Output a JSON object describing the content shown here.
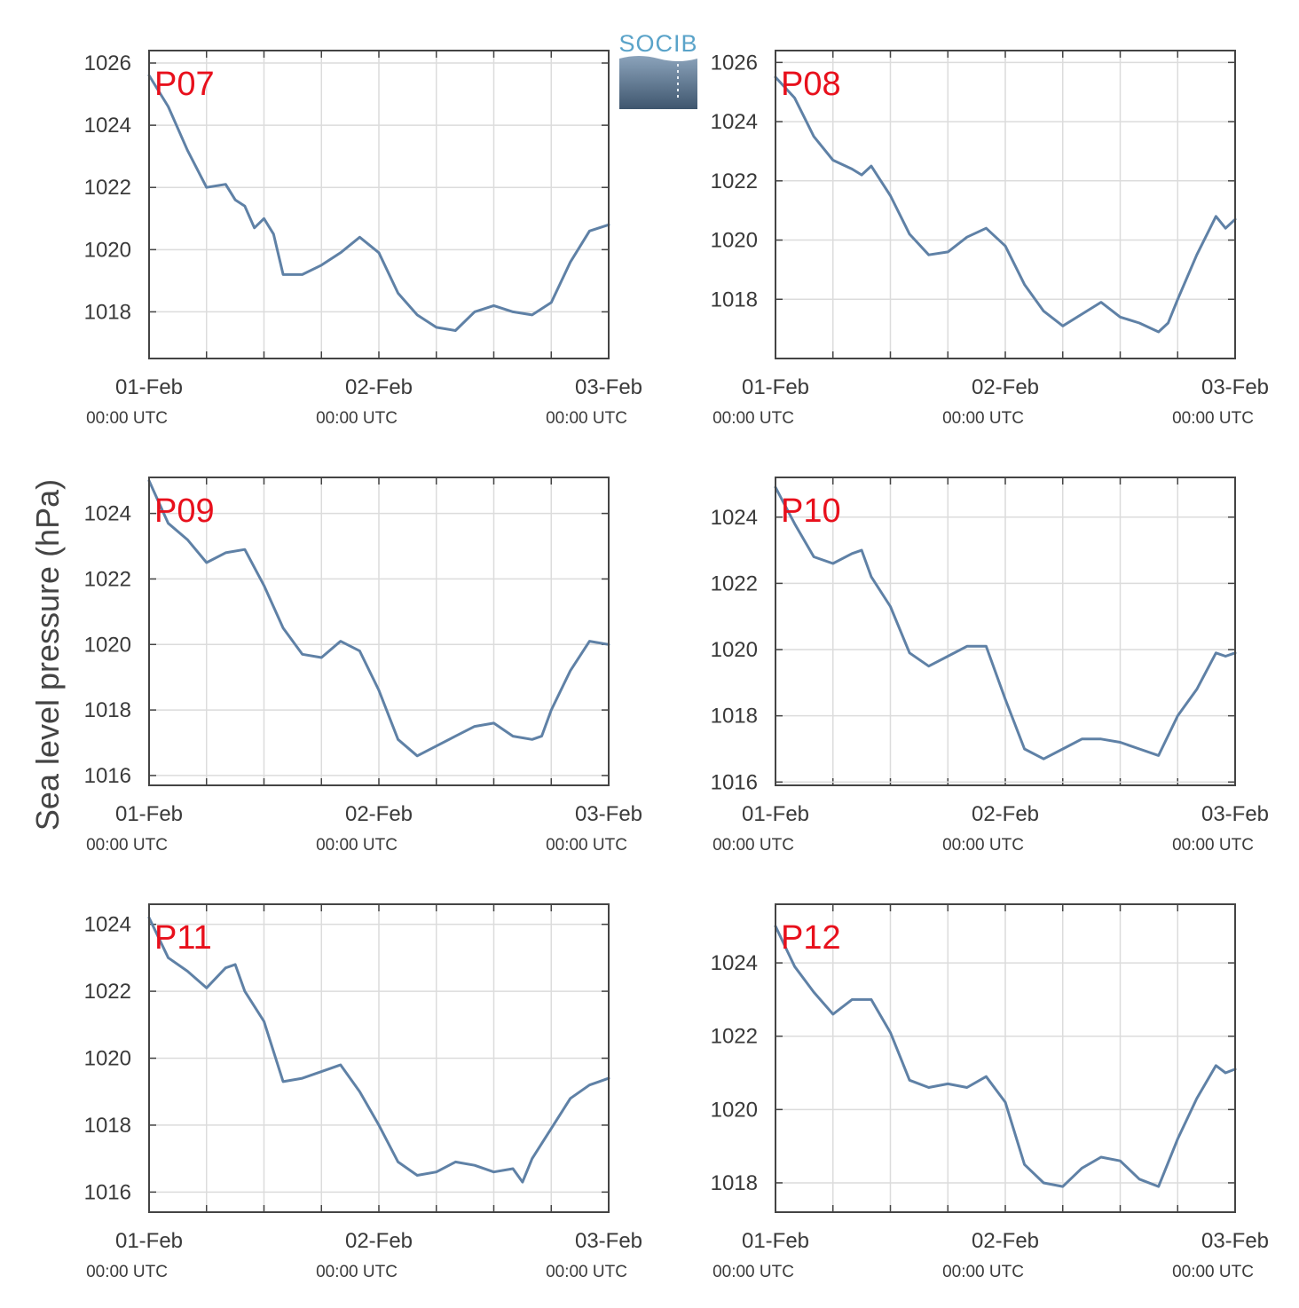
{
  "figure": {
    "ylabel": "Sea level pressure (hPa)",
    "logo_text": "SOCIB",
    "line_color": "#5f81a6",
    "label_color": "#e8101c",
    "grid_color": "#dcdcdc"
  },
  "chart_data": [
    {
      "type": "line",
      "title": "P07",
      "ylim": [
        1016.5,
        1026.4
      ],
      "yticks": [
        "1018",
        "1020",
        "1022",
        "1024",
        "1026"
      ],
      "xticks": [
        {
          "date": "01-Feb",
          "time": "00:00 UTC"
        },
        {
          "date": "02-Feb",
          "time": "00:00 UTC"
        },
        {
          "date": "03-Feb",
          "time": "00:00 UTC"
        }
      ],
      "x_unit": "hours since 01-Feb 00:00 UTC",
      "x": [
        0,
        2,
        4,
        6,
        8,
        9,
        10,
        11,
        12,
        13,
        14,
        16,
        18,
        20,
        22,
        24,
        26,
        28,
        30,
        32,
        34,
        36,
        38,
        40,
        42,
        44,
        46,
        48
      ],
      "y": [
        1025.6,
        1024.6,
        1023.2,
        1022.0,
        1022.1,
        1021.6,
        1021.4,
        1020.7,
        1021.0,
        1020.5,
        1019.2,
        1019.2,
        1019.5,
        1019.9,
        1020.4,
        1019.9,
        1018.6,
        1017.9,
        1017.5,
        1017.4,
        1018.0,
        1018.2,
        1018.0,
        1017.9,
        1018.3,
        1019.6,
        1020.6,
        1020.8
      ],
      "grid": true
    },
    {
      "type": "line",
      "title": "P08",
      "ylim": [
        1016.0,
        1026.4
      ],
      "yticks": [
        "1018",
        "1020",
        "1022",
        "1024",
        "1026"
      ],
      "xticks": [
        {
          "date": "01-Feb",
          "time": "00:00 UTC"
        },
        {
          "date": "02-Feb",
          "time": "00:00 UTC"
        },
        {
          "date": "03-Feb",
          "time": "00:00 UTC"
        }
      ],
      "x_unit": "hours since 01-Feb 00:00 UTC",
      "x": [
        0,
        2,
        4,
        6,
        8,
        9,
        10,
        11,
        12,
        14,
        16,
        18,
        20,
        22,
        24,
        26,
        28,
        30,
        32,
        34,
        36,
        38,
        40,
        41,
        42,
        44,
        46,
        47,
        48
      ],
      "y": [
        1025.5,
        1024.8,
        1023.5,
        1022.7,
        1022.4,
        1022.2,
        1022.5,
        1022.0,
        1021.5,
        1020.2,
        1019.5,
        1019.6,
        1020.1,
        1020.4,
        1019.8,
        1018.5,
        1017.6,
        1017.1,
        1017.5,
        1017.9,
        1017.4,
        1017.2,
        1016.9,
        1017.2,
        1018.0,
        1019.5,
        1020.8,
        1020.4,
        1020.7
      ],
      "grid": true
    },
    {
      "type": "line",
      "title": "P09",
      "ylim": [
        1015.7,
        1025.1
      ],
      "yticks": [
        "1016",
        "1018",
        "1020",
        "1022",
        "1024"
      ],
      "xticks": [
        {
          "date": "01-Feb",
          "time": "00:00 UTC"
        },
        {
          "date": "02-Feb",
          "time": "00:00 UTC"
        },
        {
          "date": "03-Feb",
          "time": "00:00 UTC"
        }
      ],
      "x_unit": "hours since 01-Feb 00:00 UTC",
      "x": [
        0,
        2,
        4,
        6,
        8,
        10,
        12,
        14,
        16,
        18,
        20,
        22,
        24,
        26,
        28,
        30,
        32,
        34,
        36,
        38,
        40,
        41,
        42,
        44,
        46,
        48
      ],
      "y": [
        1025.0,
        1023.7,
        1023.2,
        1022.5,
        1022.8,
        1022.9,
        1021.8,
        1020.5,
        1019.7,
        1019.6,
        1020.1,
        1019.8,
        1018.6,
        1017.1,
        1016.6,
        1016.9,
        1017.2,
        1017.5,
        1017.6,
        1017.2,
        1017.1,
        1017.2,
        1018.0,
        1019.2,
        1020.1,
        1020.0
      ],
      "grid": true
    },
    {
      "type": "line",
      "title": "P10",
      "ylim": [
        1015.9,
        1025.2
      ],
      "yticks": [
        "1016",
        "1018",
        "1020",
        "1022",
        "1024"
      ],
      "xticks": [
        {
          "date": "01-Feb",
          "time": "00:00 UTC"
        },
        {
          "date": "02-Feb",
          "time": "00:00 UTC"
        },
        {
          "date": "03-Feb",
          "time": "00:00 UTC"
        }
      ],
      "x_unit": "hours since 01-Feb 00:00 UTC",
      "x": [
        0,
        2,
        4,
        6,
        8,
        9,
        10,
        12,
        14,
        16,
        18,
        20,
        22,
        24,
        26,
        28,
        30,
        32,
        34,
        36,
        38,
        40,
        42,
        44,
        46,
        47,
        48
      ],
      "y": [
        1024.9,
        1023.8,
        1022.8,
        1022.6,
        1022.9,
        1023.0,
        1022.2,
        1021.3,
        1019.9,
        1019.5,
        1019.8,
        1020.1,
        1020.1,
        1018.5,
        1017.0,
        1016.7,
        1017.0,
        1017.3,
        1017.3,
        1017.2,
        1017.0,
        1016.8,
        1018.0,
        1018.8,
        1019.9,
        1019.8,
        1019.9
      ],
      "grid": true
    },
    {
      "type": "line",
      "title": "P12",
      "ylim": [
        1017.2,
        1025.6
      ],
      "yticks": [
        "1018",
        "1020",
        "1022",
        "1024"
      ],
      "xticks": [
        {
          "date": "01-Feb",
          "time": "00:00 UTC"
        },
        {
          "date": "02-Feb",
          "time": "00:00 UTC"
        },
        {
          "date": "03-Feb",
          "time": "00:00 UTC"
        }
      ],
      "x_unit": "hours since 01-Feb 00:00 UTC",
      "x": [
        0,
        2,
        4,
        6,
        8,
        10,
        12,
        14,
        16,
        18,
        20,
        22,
        24,
        26,
        28,
        30,
        32,
        34,
        36,
        38,
        40,
        42,
        44,
        46,
        47,
        48
      ],
      "y": [
        1025.0,
        1023.9,
        1023.2,
        1022.6,
        1023.0,
        1023.0,
        1022.1,
        1020.8,
        1020.6,
        1020.7,
        1020.6,
        1020.9,
        1020.2,
        1018.5,
        1018.0,
        1017.9,
        1018.4,
        1018.7,
        1018.6,
        1018.1,
        1017.9,
        1019.2,
        1020.3,
        1021.2,
        1021.0,
        1021.1
      ],
      "grid": true
    },
    {
      "type": "line",
      "title": "P11",
      "ylim": [
        1015.4,
        1024.6
      ],
      "yticks": [
        "1016",
        "1018",
        "1020",
        "1022",
        "1024"
      ],
      "xticks": [
        {
          "date": "01-Feb",
          "time": "00:00 UTC"
        },
        {
          "date": "02-Feb",
          "time": "00:00 UTC"
        },
        {
          "date": "03-Feb",
          "time": "00:00 UTC"
        }
      ],
      "x_unit": "hours since 01-Feb 00:00 UTC",
      "x": [
        0,
        2,
        4,
        6,
        8,
        9,
        10,
        12,
        14,
        16,
        18,
        20,
        22,
        24,
        26,
        28,
        30,
        32,
        34,
        36,
        38,
        39,
        40,
        42,
        44,
        46,
        47,
        48
      ],
      "y": [
        1024.2,
        1023.0,
        1022.6,
        1022.1,
        1022.7,
        1022.8,
        1022.0,
        1021.1,
        1019.3,
        1019.4,
        1019.6,
        1019.8,
        1019.0,
        1018.0,
        1016.9,
        1016.5,
        1016.6,
        1016.9,
        1016.8,
        1016.6,
        1016.7,
        1016.3,
        1017.0,
        1017.9,
        1018.8,
        1019.2,
        1019.3,
        1019.4
      ],
      "grid": true
    }
  ]
}
